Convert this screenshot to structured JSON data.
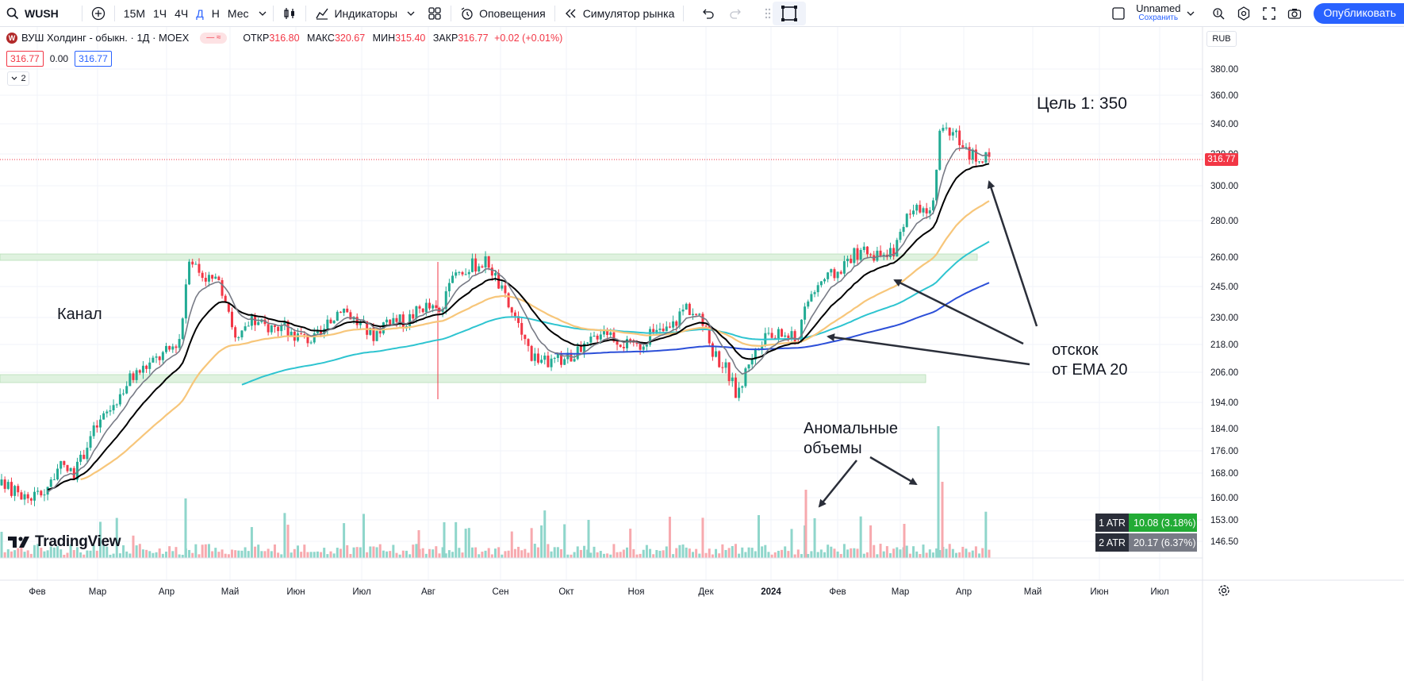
{
  "toolbar": {
    "symbol": "WUSH",
    "timeframes": [
      "15М",
      "1Ч",
      "4Ч",
      "Д",
      "Н",
      "Мес"
    ],
    "active_timeframe": "Д",
    "indicators_label": "Индикаторы",
    "alerts_label": "Оповещения",
    "replay_label": "Симулятор рынка",
    "layout_name": "Unnamed",
    "save_label": "Сохранить",
    "publish_label": "Опубликовать"
  },
  "legend": {
    "logo_letter": "W",
    "title": "ВУШ Холдинг - обыкн. · 1Д · MOEX",
    "open_label": "ОТКР",
    "open": "316.80",
    "high_label": "МАКС",
    "high": "320.67",
    "low_label": "МИН",
    "low": "315.40",
    "close_label": "ЗАКР",
    "close": "316.77",
    "change": "+0.02 (+0.01%)",
    "bid": "316.77",
    "spread": "0.00",
    "ask": "316.77",
    "indicators_count": "2"
  },
  "price_axis": {
    "currency": "RUB",
    "ticks": [
      "380.00",
      "360.00",
      "340.00",
      "320.00",
      "300.00",
      "280.00",
      "260.00",
      "245.00",
      "230.00",
      "218.00",
      "206.00",
      "194.00",
      "184.00",
      "176.00",
      "168.00",
      "160.00",
      "153.00",
      "146.50"
    ],
    "current_price": "316.77"
  },
  "time_axis": {
    "ticks": [
      "Фев",
      "Мар",
      "Апр",
      "Май",
      "Июн",
      "Июл",
      "Авг",
      "Сен",
      "Окт",
      "Ноя",
      "Дек",
      "2024",
      "Фев",
      "Мар",
      "Апр",
      "Май",
      "Июн",
      "Июл"
    ]
  },
  "annotations": {
    "channel": "Канал",
    "target": "Цель 1: 350",
    "bounce_line1": "отскок",
    "bounce_line2": "от EMA 20",
    "volume_line1": "Аномальные",
    "volume_line2": "объемы"
  },
  "atr": {
    "rows": [
      {
        "key": "1 ATR",
        "value": "10.08 (3.18%)"
      },
      {
        "key": "2 ATR",
        "value": "20.17 (6.37%)"
      }
    ]
  },
  "branding": {
    "name": "TradingView"
  },
  "colors": {
    "up": "#22ab94",
    "down": "#f23645",
    "ema_fast": "#787b86",
    "ema20": "#000000",
    "ema50": "#f7c67a",
    "ema100": "#2ec4d0",
    "ema200": "#2c4fd8",
    "zone": "#dff2df"
  },
  "chart_data": {
    "type": "candlestick",
    "title": "",
    "x": [
      "Фев",
      "Мар",
      "Апр",
      "Май",
      "Июн",
      "Июл",
      "Авг",
      "Сен",
      "Окт",
      "Ноя",
      "Дек",
      "2024",
      "Фев",
      "Мар",
      "Апр"
    ],
    "close_approx": [
      165,
      185,
      265,
      232,
      224,
      228,
      240,
      255,
      215,
      222,
      210,
      226,
      260,
      285,
      317
    ],
    "volume_note": "anomalous spikes near mid-January 2024 and mid-March 2024",
    "ylim": [
      146.5,
      390
    ],
    "scale": "log",
    "grid": true
  }
}
